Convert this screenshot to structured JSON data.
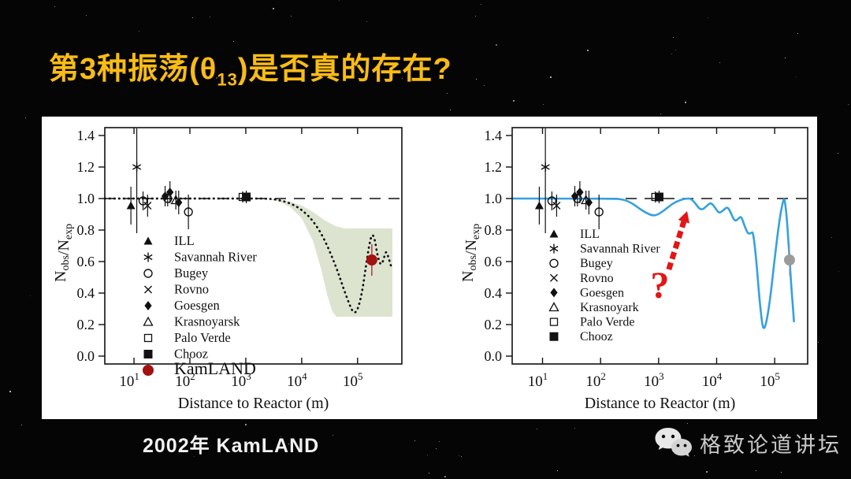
{
  "slide": {
    "title": {
      "prefix": "第3种振荡(",
      "theta": "θ",
      "sub": "13",
      "suffix": ")是否真的存在?",
      "color": "#f9bc15"
    },
    "caption": "2002年 KamLAND"
  },
  "watermark": {
    "icon": "wechat-icon",
    "text": "格致论道讲坛"
  },
  "colors": {
    "title_yellow": "#f9bc15",
    "band_green": "#dce4d0",
    "curve_blue": "#35a1dd",
    "kamland_red": "#a31111",
    "kamland_gray": "#9b9b9b",
    "annotation_red": "#e31515",
    "panel_white": "#ffffff"
  },
  "chart_data": [
    {
      "type": "scatter",
      "position": "left",
      "title": "",
      "xlabel": "Distance to Reactor (m)",
      "ylabel_parts": [
        [
          "N",
          false
        ],
        [
          "obs",
          true
        ],
        [
          "/N",
          false
        ],
        [
          "exp",
          true
        ]
      ],
      "xscale": "log",
      "xlim": [
        3,
        620000
      ],
      "ylim": [
        -0.05,
        1.45
      ],
      "xticks": [
        10,
        100,
        1000,
        10000,
        100000
      ],
      "yticks": [
        0.0,
        0.2,
        0.4,
        0.6,
        0.8,
        1.0,
        1.2,
        1.4
      ],
      "reference_line_y": 1.0,
      "grid": false,
      "legend_position": "lower-left-inside",
      "legend": [
        {
          "marker": "triangle-filled",
          "label": "ILL"
        },
        {
          "marker": "asterisk",
          "label": "Savannah River"
        },
        {
          "marker": "circle-open",
          "label": "Bugey"
        },
        {
          "marker": "x",
          "label": "Rovno"
        },
        {
          "marker": "diamond-filled",
          "label": "Goesgen"
        },
        {
          "marker": "triangle-open",
          "label": "Krasnoyarsk"
        },
        {
          "marker": "square-open",
          "label": "Palo Verde"
        },
        {
          "marker": "square-filled",
          "label": "Chooz"
        },
        {
          "marker": "circle-filled",
          "label": "KamLAND",
          "color": "#a31111",
          "big": true
        }
      ],
      "points": [
        {
          "experiment": "ILL",
          "marker": "triangle-filled",
          "x_m": 8.8,
          "ratio": 0.955,
          "err": 0.12
        },
        {
          "experiment": "Savannah River",
          "marker": "asterisk",
          "x_m": 11.2,
          "ratio": 1.2,
          "err": 0.42
        },
        {
          "experiment": "Bugey",
          "marker": "circle-open",
          "x_m": 14.5,
          "ratio": 0.985,
          "err": 0.06
        },
        {
          "experiment": "Rovno",
          "marker": "x",
          "x_m": 17.5,
          "ratio": 0.955,
          "err": 0.07
        },
        {
          "experiment": "Goesgen",
          "marker": "diamond-filled",
          "x_m": 36,
          "ratio": 1.015,
          "err": 0.065
        },
        {
          "experiment": "Bugey",
          "marker": "circle-open",
          "x_m": 40,
          "ratio": 1.0,
          "err": 0.05
        },
        {
          "experiment": "Goesgen",
          "marker": "diamond-filled",
          "x_m": 44,
          "ratio": 1.04,
          "err": 0.07
        },
        {
          "experiment": "Krasnoyarsk",
          "marker": "triangle-open",
          "x_m": 56,
          "ratio": 0.99,
          "err": 0.06
        },
        {
          "experiment": "Goesgen",
          "marker": "diamond-filled",
          "x_m": 63,
          "ratio": 0.975,
          "err": 0.075
        },
        {
          "experiment": "Bugey",
          "marker": "circle-open",
          "x_m": 94,
          "ratio": 0.915,
          "err": 0.11
        },
        {
          "experiment": "Palo Verde",
          "marker": "square-open",
          "x_m": 880,
          "ratio": 1.01,
          "err": 0.035
        },
        {
          "experiment": "Chooz",
          "marker": "square-filled",
          "x_m": 1020,
          "ratio": 1.01,
          "err": 0.04
        }
      ],
      "kamland_point": {
        "experiment": "KamLAND",
        "marker": "circle-filled",
        "x_m": 180000,
        "ratio": 0.61,
        "err": 0.1,
        "color": "#a31111"
      },
      "band": {
        "color": "#dce4d0",
        "upper": [
          [
            2300,
            1.0
          ],
          [
            4000,
            0.995
          ],
          [
            6300,
            0.98
          ],
          [
            10000,
            0.955
          ],
          [
            16000,
            0.915
          ],
          [
            25000,
            0.865
          ],
          [
            40000,
            0.825
          ],
          [
            60000,
            0.81
          ],
          [
            420000,
            0.81
          ]
        ],
        "lower": [
          [
            2300,
            1.0
          ],
          [
            4000,
            0.98
          ],
          [
            6300,
            0.945
          ],
          [
            10000,
            0.875
          ],
          [
            16000,
            0.73
          ],
          [
            22000,
            0.56
          ],
          [
            28000,
            0.4
          ],
          [
            35000,
            0.285
          ],
          [
            42000,
            0.25
          ],
          [
            420000,
            0.25
          ]
        ]
      },
      "curve": {
        "style": "dotted",
        "color": "#111111",
        "points": [
          [
            3,
            1.0
          ],
          [
            100,
            1.0
          ],
          [
            1000,
            1.0
          ],
          [
            2500,
            1.0
          ],
          [
            4000,
            0.99
          ],
          [
            6300,
            0.97
          ],
          [
            10000,
            0.93
          ],
          [
            16000,
            0.86
          ],
          [
            25000,
            0.75
          ],
          [
            40000,
            0.58
          ],
          [
            56000,
            0.43
          ],
          [
            71000,
            0.33
          ],
          [
            85000,
            0.27
          ],
          [
            100000,
            0.29
          ],
          [
            120000,
            0.4
          ],
          [
            141000,
            0.57
          ],
          [
            162000,
            0.71
          ],
          [
            182000,
            0.78
          ],
          [
            204000,
            0.74
          ],
          [
            229000,
            0.63
          ],
          [
            263000,
            0.57
          ],
          [
            295000,
            0.62
          ],
          [
            324000,
            0.67
          ],
          [
            355000,
            0.63
          ],
          [
            398000,
            0.57
          ]
        ]
      }
    },
    {
      "type": "scatter",
      "position": "right",
      "title": "",
      "xlabel": "Distance to Reactor (m)",
      "ylabel_parts": [
        [
          "N",
          false
        ],
        [
          "obs",
          true
        ],
        [
          "/N",
          false
        ],
        [
          "exp",
          true
        ]
      ],
      "xscale": "log",
      "xlim": [
        3,
        370000
      ],
      "ylim": [
        -0.05,
        1.45
      ],
      "xticks": [
        10,
        100,
        1000,
        10000,
        100000
      ],
      "yticks": [
        0.0,
        0.2,
        0.4,
        0.6,
        0.8,
        1.0,
        1.2,
        1.4
      ],
      "reference_line_y": 1.0,
      "grid": false,
      "legend_position": "lower-left-inside",
      "legend": [
        {
          "marker": "triangle-filled",
          "label": "ILL"
        },
        {
          "marker": "asterisk",
          "label": "Savannah River"
        },
        {
          "marker": "circle-open",
          "label": "Bugey"
        },
        {
          "marker": "x",
          "label": "Rovno"
        },
        {
          "marker": "diamond-filled",
          "label": "Goesgen"
        },
        {
          "marker": "triangle-open",
          "label": "Krasnoyark"
        },
        {
          "marker": "square-open",
          "label": "Palo Verde"
        },
        {
          "marker": "square-filled",
          "label": "Chooz"
        }
      ],
      "points": [
        {
          "experiment": "ILL",
          "marker": "triangle-filled",
          "x_m": 8.8,
          "ratio": 0.955,
          "err": 0.12
        },
        {
          "experiment": "Savannah River",
          "marker": "asterisk",
          "x_m": 11.2,
          "ratio": 1.2,
          "err": 0.42
        },
        {
          "experiment": "Bugey",
          "marker": "circle-open",
          "x_m": 14.5,
          "ratio": 0.985,
          "err": 0.06
        },
        {
          "experiment": "Rovno",
          "marker": "x",
          "x_m": 17.5,
          "ratio": 0.955,
          "err": 0.07
        },
        {
          "experiment": "Goesgen",
          "marker": "diamond-filled",
          "x_m": 36,
          "ratio": 1.015,
          "err": 0.065
        },
        {
          "experiment": "Bugey",
          "marker": "circle-open",
          "x_m": 40,
          "ratio": 1.0,
          "err": 0.05
        },
        {
          "experiment": "Goesgen",
          "marker": "diamond-filled",
          "x_m": 44,
          "ratio": 1.04,
          "err": 0.07
        },
        {
          "experiment": "Krasnoyark",
          "marker": "triangle-open",
          "x_m": 56,
          "ratio": 0.99,
          "err": 0.06
        },
        {
          "experiment": "Goesgen",
          "marker": "diamond-filled",
          "x_m": 63,
          "ratio": 0.975,
          "err": 0.075
        },
        {
          "experiment": "Bugey",
          "marker": "circle-open",
          "x_m": 94,
          "ratio": 0.915,
          "err": 0.11
        },
        {
          "experiment": "Palo Verde",
          "marker": "square-open",
          "x_m": 880,
          "ratio": 1.01,
          "err": 0.035
        },
        {
          "experiment": "Chooz",
          "marker": "square-filled",
          "x_m": 1020,
          "ratio": 1.01,
          "err": 0.04
        }
      ],
      "kamland_point": {
        "experiment": "KamLAND",
        "marker": "circle-filled",
        "x_m": 180000,
        "ratio": 0.61,
        "err": 0.1,
        "color": "#9b9b9b"
      },
      "curve": {
        "style": "solid",
        "color": "#35a1dd",
        "points": [
          [
            3,
            1.0
          ],
          [
            150,
            1.0
          ],
          [
            250,
            0.995
          ],
          [
            350,
            0.97
          ],
          [
            450,
            0.94
          ],
          [
            600,
            0.91
          ],
          [
            800,
            0.89
          ],
          [
            1000,
            0.9
          ],
          [
            1300,
            0.93
          ],
          [
            1700,
            0.965
          ],
          [
            2300,
            0.99
          ],
          [
            3000,
            1.0
          ],
          [
            3600,
            1.0
          ],
          [
            4300,
            0.97
          ],
          [
            5000,
            0.935
          ],
          [
            5800,
            0.93
          ],
          [
            6800,
            0.955
          ],
          [
            8000,
            0.975
          ],
          [
            9500,
            0.94
          ],
          [
            11000,
            0.905
          ],
          [
            13000,
            0.925
          ],
          [
            15500,
            0.95
          ],
          [
            18000,
            0.9
          ],
          [
            20500,
            0.855
          ],
          [
            23500,
            0.87
          ],
          [
            26500,
            0.89
          ],
          [
            30000,
            0.83
          ],
          [
            34500,
            0.775
          ],
          [
            39000,
            0.78
          ],
          [
            42500,
            0.79
          ],
          [
            48000,
            0.62
          ],
          [
            55000,
            0.35
          ],
          [
            61000,
            0.2
          ],
          [
            65000,
            0.17
          ],
          [
            72000,
            0.21
          ],
          [
            85000,
            0.38
          ],
          [
            100000,
            0.62
          ],
          [
            120000,
            0.86
          ],
          [
            140000,
            0.99
          ],
          [
            148000,
            1.0
          ],
          [
            160000,
            0.9
          ],
          [
            175000,
            0.7
          ],
          [
            190000,
            0.48
          ],
          [
            205000,
            0.32
          ],
          [
            215000,
            0.22
          ]
        ]
      },
      "annotation": {
        "question_text": "?",
        "color": "#e31515",
        "question_at": [
          1050,
          0.37
        ],
        "arrow_from": [
          1500,
          0.55
        ],
        "arrow_to": [
          3100,
          0.92
        ]
      }
    }
  ]
}
